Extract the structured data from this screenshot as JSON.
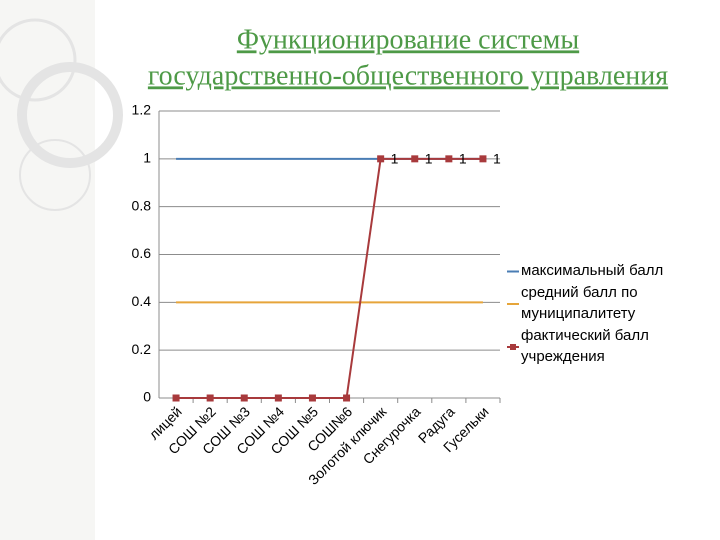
{
  "chart_data": {
    "type": "line",
    "title": [
      "Функционирование системы",
      "государственно-общественного управления"
    ],
    "categories": [
      "лицей",
      "СОШ №2",
      "СОШ №3",
      "СОШ №4",
      "СОШ №5",
      "СОШ№6",
      "Золотой ключик",
      "Снегурочка",
      "Радуга",
      "Гусельки"
    ],
    "series": [
      {
        "name": "максимальный балл",
        "color": "#4a7db4",
        "marker": false,
        "values": [
          1,
          1,
          1,
          1,
          1,
          1,
          1,
          1,
          1,
          1
        ]
      },
      {
        "name": "средний балл по муниципалитету",
        "color": "#e6a53a",
        "marker": false,
        "values": [
          0.4,
          0.4,
          0.4,
          0.4,
          0.4,
          0.4,
          0.4,
          0.4,
          0.4,
          0.4
        ]
      },
      {
        "name": "фактический балл учреждения",
        "color": "#a83a3c",
        "marker": true,
        "values": [
          0,
          0,
          0,
          0,
          0,
          0,
          1,
          1,
          1,
          1
        ],
        "value_labels": [
          null,
          null,
          null,
          null,
          null,
          null,
          "1",
          "1",
          "1",
          "1"
        ]
      }
    ],
    "ylim": [
      0,
      1.2
    ],
    "yticks": [
      0,
      0.2,
      0.4,
      0.6,
      0.8,
      1,
      1.2
    ],
    "grid": true,
    "legend": "right"
  }
}
